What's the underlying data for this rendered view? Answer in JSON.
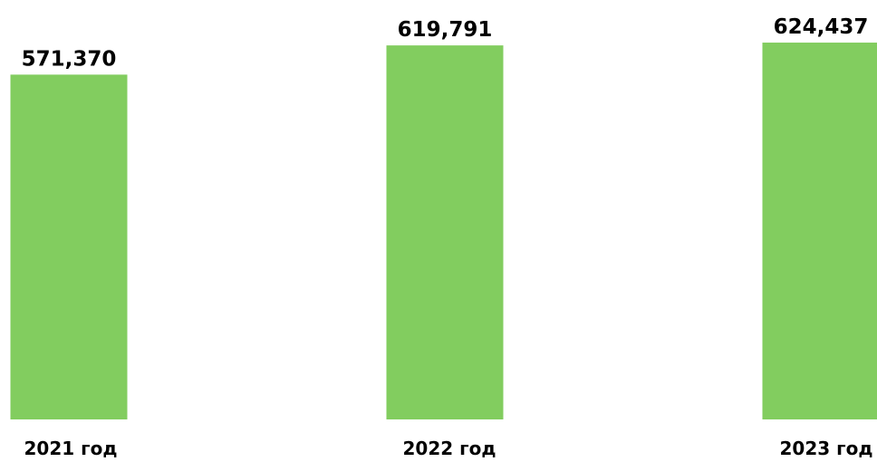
{
  "chart_data": {
    "type": "bar",
    "categories": [
      "2021 год",
      "2022 год",
      "2023 год"
    ],
    "values": [
      571370,
      619791,
      624437
    ],
    "value_labels": [
      "571,370",
      "619,791",
      "624,437"
    ],
    "title": "",
    "xlabel": "",
    "ylabel": "",
    "ylim": [
      0,
      650000
    ],
    "grid": false,
    "legend": "none",
    "data_labels": "above bars",
    "colors": {
      "bar": "#82CD5F",
      "text": "#000000",
      "background": "#FFFFFF"
    }
  }
}
